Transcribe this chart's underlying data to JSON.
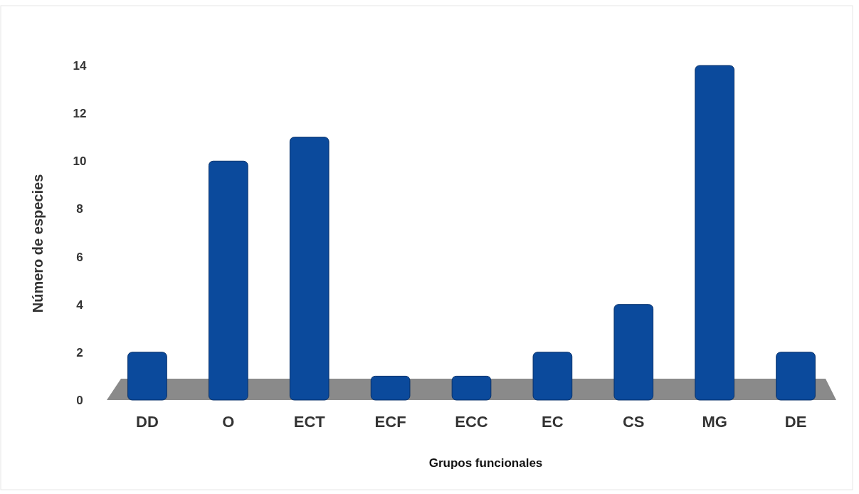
{
  "chart_data": {
    "type": "bar",
    "xlabel": "Grupos funcionales",
    "ylabel": "Número de especies",
    "categories": [
      "DD",
      "O",
      "ECT",
      "ECF",
      "ECC",
      "EC",
      "CS",
      "MG",
      "DE"
    ],
    "values": [
      2,
      10,
      11,
      1,
      1,
      2,
      4,
      14,
      2
    ],
    "color": "#0b4a9c",
    "ylim": [
      0,
      14
    ],
    "yticks": [
      0,
      2,
      4,
      6,
      8,
      10,
      12,
      14
    ],
    "grid": false
  }
}
